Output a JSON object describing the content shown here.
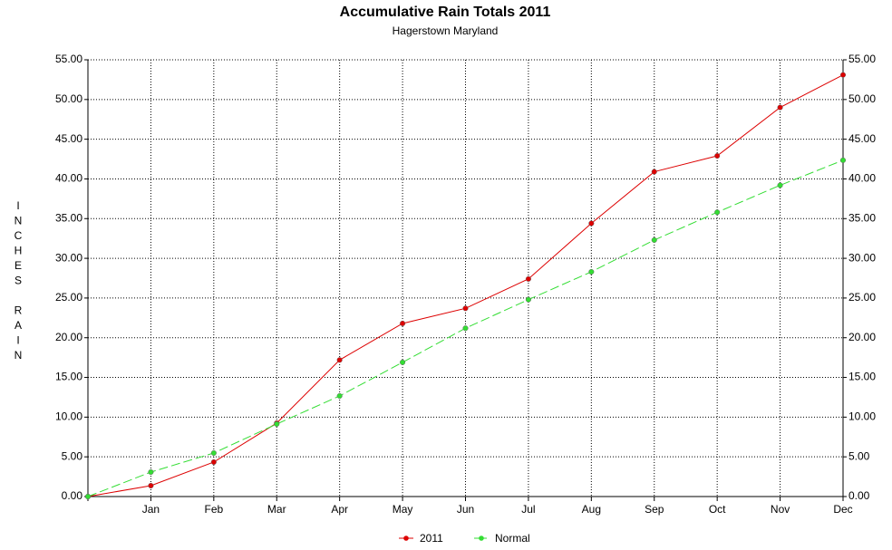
{
  "chart_data": {
    "type": "line",
    "title": "Accumulative Rain Totals 2011",
    "subtitle": "Hagerstown Maryland",
    "ylabel": "INCHES RAIN",
    "categories": [
      null,
      "Jan",
      "Feb",
      "Mar",
      "Apr",
      "May",
      "Jun",
      "Jul",
      "Aug",
      "Sep",
      "Oct",
      "Nov",
      "Dec"
    ],
    "series": [
      {
        "name": "2011",
        "color": "#dd0000",
        "dashed": false,
        "values": [
          0,
          1.37,
          4.34,
          9.25,
          17.2,
          21.8,
          23.7,
          27.4,
          34.4,
          40.9,
          42.9,
          49.0,
          53.1
        ]
      },
      {
        "name": "Normal",
        "color": "#33dd33",
        "dashed": true,
        "values": [
          0,
          3.08,
          5.48,
          9.13,
          12.67,
          16.9,
          21.2,
          24.8,
          28.3,
          32.3,
          35.8,
          39.2,
          42.35
        ]
      }
    ],
    "ylim": [
      0,
      55
    ],
    "yticks": [
      {
        "value": 0,
        "label": "0.00"
      },
      {
        "value": 5,
        "label": "5.00"
      },
      {
        "value": 10,
        "label": "10.00"
      },
      {
        "value": 15,
        "label": "15.00"
      },
      {
        "value": 20,
        "label": "20.00"
      },
      {
        "value": 25,
        "label": "25.00"
      },
      {
        "value": 30,
        "label": "30.00"
      },
      {
        "value": 35,
        "label": "35.00"
      },
      {
        "value": 40,
        "label": "40.00"
      },
      {
        "value": 45,
        "label": "45.00"
      },
      {
        "value": 50,
        "label": "50.00"
      },
      {
        "value": 55,
        "label": "55.00"
      }
    ],
    "y2lim": [
      0,
      55
    ],
    "y2ticks": [
      {
        "value": 0,
        "label": "0.00"
      },
      {
        "value": 5,
        "label": "5.00"
      },
      {
        "value": 10,
        "label": "10.00"
      },
      {
        "value": 15,
        "label": "15.00"
      },
      {
        "value": 20,
        "label": "20.00"
      },
      {
        "value": 25,
        "label": "25.00"
      },
      {
        "value": 30,
        "label": "30.00"
      },
      {
        "value": 35,
        "label": "35.00"
      },
      {
        "value": 40,
        "label": "40.00"
      },
      {
        "value": 45,
        "label": "45.00"
      },
      {
        "value": 50,
        "label": "50.00"
      },
      {
        "value": 55,
        "label": "55.00"
      }
    ],
    "grid": true,
    "legend": "bottom"
  }
}
